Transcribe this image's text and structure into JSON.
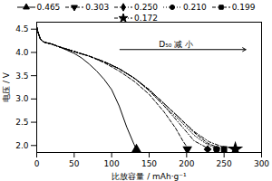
{
  "chart_data": {
    "type": "line",
    "xlabel": "比放容量 / mAh·g⁻¹",
    "ylabel": "电压 / V",
    "xlim": [
      0,
      300
    ],
    "ylim": [
      1.85,
      4.65
    ],
    "xticks": [
      0,
      50,
      100,
      150,
      200,
      250,
      300
    ],
    "yticks": [
      {
        "value": 2.0,
        "label": "2.0"
      },
      2.5,
      {
        "value": 3.0,
        "label": "3.0"
      },
      3.5,
      {
        "value": 4.0,
        "label": "4.0"
      },
      4.5
    ],
    "grid": false,
    "legend": "upper right",
    "annotations": [
      "D₅₀ 减 小"
    ],
    "series": [
      {
        "name": "0.465",
        "color": "#000000",
        "marker": "triangle_up",
        "line_style": "solid",
        "x": [
          0,
          2,
          5,
          10,
          20,
          30,
          40,
          50,
          60,
          70,
          80,
          90,
          100,
          110,
          120,
          130,
          133
        ],
        "values": [
          4.55,
          4.42,
          4.28,
          4.22,
          4.18,
          4.12,
          4.05,
          3.98,
          3.88,
          3.75,
          3.6,
          3.42,
          3.2,
          2.85,
          2.4,
          2.02,
          1.92
        ]
      },
      {
        "name": "0.303",
        "color": "#000000",
        "marker": "triangle_down",
        "line_style": "dashed",
        "x": [
          0,
          2,
          5,
          10,
          20,
          30,
          50,
          70,
          90,
          110,
          130,
          150,
          170,
          185,
          195,
          200,
          201
        ],
        "values": [
          4.55,
          4.42,
          4.28,
          4.22,
          4.18,
          4.12,
          4.02,
          3.92,
          3.78,
          3.6,
          3.38,
          3.1,
          2.72,
          2.38,
          2.1,
          1.98,
          1.92
        ]
      },
      {
        "name": "0.250",
        "color": "#000000",
        "marker": "diamond",
        "line_style": "dashdot",
        "x": [
          0,
          2,
          5,
          10,
          20,
          30,
          50,
          70,
          90,
          110,
          130,
          150,
          170,
          190,
          210,
          225,
          228
        ],
        "values": [
          4.55,
          4.42,
          4.28,
          4.22,
          4.18,
          4.12,
          4.02,
          3.92,
          3.8,
          3.65,
          3.45,
          3.18,
          2.85,
          2.48,
          2.1,
          1.97,
          1.92
        ]
      },
      {
        "name": "0.210",
        "color": "#000000",
        "marker": "circle",
        "line_style": "dotted",
        "x": [
          0,
          2,
          5,
          10,
          20,
          30,
          50,
          70,
          90,
          110,
          130,
          150,
          170,
          190,
          210,
          225,
          235,
          240
        ],
        "values": [
          4.55,
          4.42,
          4.28,
          4.22,
          4.18,
          4.12,
          4.02,
          3.92,
          3.8,
          3.65,
          3.45,
          3.18,
          2.85,
          2.55,
          2.22,
          2.05,
          1.97,
          1.92
        ]
      },
      {
        "name": "0.199",
        "color": "#000000",
        "marker": "square",
        "line_style": "dashed",
        "x": [
          0,
          2,
          5,
          10,
          20,
          30,
          50,
          70,
          90,
          110,
          130,
          150,
          170,
          190,
          210,
          228,
          240,
          248,
          250
        ],
        "values": [
          4.55,
          4.42,
          4.28,
          4.22,
          4.18,
          4.12,
          4.02,
          3.92,
          3.8,
          3.65,
          3.45,
          3.2,
          2.9,
          2.6,
          2.28,
          2.05,
          1.97,
          1.93,
          1.92
        ]
      },
      {
        "name": "0.172",
        "color": "#000000",
        "marker": "star",
        "line_style": "dashdot",
        "x": [
          0,
          2,
          5,
          10,
          20,
          30,
          50,
          70,
          90,
          110,
          130,
          150,
          170,
          190,
          210,
          230,
          245,
          258,
          262,
          265
        ],
        "values": [
          4.55,
          4.42,
          4.28,
          4.22,
          4.18,
          4.12,
          4.02,
          3.92,
          3.8,
          3.65,
          3.45,
          3.2,
          2.9,
          2.6,
          2.3,
          2.08,
          1.99,
          1.95,
          1.93,
          1.92
        ]
      }
    ]
  }
}
